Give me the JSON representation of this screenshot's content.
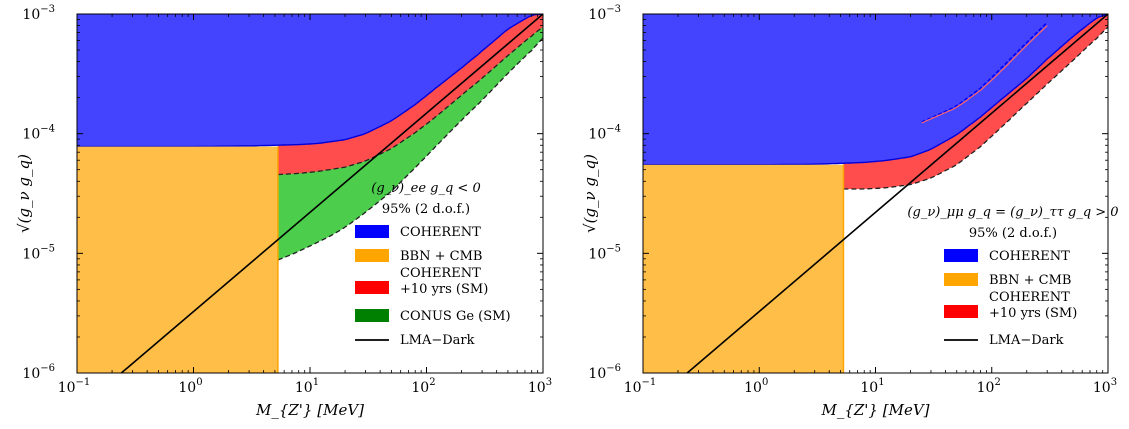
{
  "chart_data": [
    {
      "type": "area",
      "xlabel": "M_{Z'} [MeV]",
      "ylabel": "√(g_ν g_q)",
      "x_scale": "log",
      "y_scale": "log",
      "xlim": [
        0.1,
        1000
      ],
      "ylim": [
        1e-06,
        0.001
      ],
      "x_ticks": [
        {
          "value": 0.1,
          "base": "10",
          "exp": "−1"
        },
        {
          "value": 1,
          "base": "10",
          "exp": "0"
        },
        {
          "value": 10,
          "base": "10",
          "exp": "1"
        },
        {
          "value": 100,
          "base": "10",
          "exp": "2"
        },
        {
          "value": 1000,
          "base": "10",
          "exp": "3"
        }
      ],
      "y_ticks": [
        {
          "value": 1e-06,
          "base": "10",
          "exp": "−6"
        },
        {
          "value": 1e-05,
          "base": "10",
          "exp": "−5"
        },
        {
          "value": 0.0001,
          "base": "10",
          "exp": "−4"
        },
        {
          "value": 0.001,
          "base": "10",
          "exp": "−3"
        }
      ],
      "legend_title": [
        "(g_ν)_ee g_q < 0",
        "95% (2 d.o.f.)"
      ],
      "legend_placement": "lower-right",
      "legend": [
        {
          "label": [
            "COHERENT"
          ],
          "color": "#0000ff",
          "kind": "patch"
        },
        {
          "label": [
            "BBN + CMB"
          ],
          "color": "#ffa500",
          "kind": "patch"
        },
        {
          "label": [
            "COHERENT",
            "+10 yrs (SM)"
          ],
          "color": "#ff0000",
          "kind": "patch"
        },
        {
          "label": [
            "CONUS Ge (SM)"
          ],
          "color": "#008000",
          "kind": "patch"
        },
        {
          "label": [
            "LMA−Dark"
          ],
          "color": "#000000",
          "kind": "line"
        }
      ],
      "series": [
        {
          "name": "COHERENT",
          "kind": "excluded_above",
          "color": "#4444ff",
          "x": [
            0.1,
            1,
            3,
            5,
            8,
            12,
            20,
            30,
            50,
            80,
            120,
            200,
            300,
            500,
            800,
            1000
          ],
          "y": [
            7.8e-05,
            7.8e-05,
            7.9e-05,
            8e-05,
            8.1e-05,
            8.3e-05,
            8.9e-05,
            0.0001,
            0.000128,
            0.000175,
            0.00024,
            0.000355,
            0.00049,
            0.00075,
            0.00098,
            0.001
          ]
        },
        {
          "name": "BBN + CMB",
          "kind": "excluded_below_xmax",
          "color": "#ffbe47",
          "edge_color": "#ffa500",
          "xmax": 5.3,
          "ymax": 7.8e-05
        },
        {
          "name": "COHERENT +10 yrs (SM)",
          "kind": "band_above",
          "color": "#ff4d4d",
          "x_start": 5.3,
          "x": [
            5.3,
            8,
            12,
            20,
            30,
            50,
            80,
            120,
            200,
            300,
            500,
            800,
            1000
          ],
          "y": [
            4.55e-05,
            4.65e-05,
            4.85e-05,
            5.25e-05,
            5.9e-05,
            7.5e-05,
            0.000102,
            0.000138,
            0.00021,
            0.00029,
            0.00045,
            0.00066,
            0.00078
          ]
        },
        {
          "name": "CONUS Ge (SM)",
          "kind": "band_above",
          "color": "#4ccd4c",
          "x_start": 5.3,
          "x": [
            5.3,
            7,
            10,
            15,
            20,
            30,
            50,
            80,
            120,
            200,
            300,
            500,
            800,
            1000
          ],
          "y": [
            8.8e-06,
            9.8e-06,
            1.15e-05,
            1.4e-05,
            1.65e-05,
            2.2e-05,
            3.3e-05,
            5.2e-05,
            7.8e-05,
            0.00013,
            0.00019,
            0.00032,
            0.0005,
            0.00063
          ]
        },
        {
          "name": "LMA−Dark",
          "kind": "line",
          "color": "#000000",
          "x": [
            0.24,
            1000
          ],
          "y": [
            1e-06,
            0.001
          ]
        }
      ]
    },
    {
      "type": "area",
      "xlabel": "M_{Z'} [MeV]",
      "ylabel": "√(g_ν g_q)",
      "x_scale": "log",
      "y_scale": "log",
      "xlim": [
        0.1,
        1000
      ],
      "ylim": [
        1e-06,
        0.001
      ],
      "x_ticks": [
        {
          "value": 0.1,
          "base": "10",
          "exp": "−1"
        },
        {
          "value": 1,
          "base": "10",
          "exp": "0"
        },
        {
          "value": 10,
          "base": "10",
          "exp": "1"
        },
        {
          "value": 100,
          "base": "10",
          "exp": "2"
        },
        {
          "value": 1000,
          "base": "10",
          "exp": "3"
        }
      ],
      "y_ticks": [
        {
          "value": 1e-06,
          "base": "10",
          "exp": "−6"
        },
        {
          "value": 1e-05,
          "base": "10",
          "exp": "−5"
        },
        {
          "value": 0.0001,
          "base": "10",
          "exp": "−4"
        },
        {
          "value": 0.001,
          "base": "10",
          "exp": "−3"
        }
      ],
      "legend_title": [
        "(g_ν)_μμ g_q = (g_ν)_ττ g_q > 0",
        "95% (2 d.o.f.)"
      ],
      "legend_placement": "lower-right",
      "legend": [
        {
          "label": [
            "COHERENT"
          ],
          "color": "#0000ff",
          "kind": "patch"
        },
        {
          "label": [
            "BBN + CMB"
          ],
          "color": "#ffa500",
          "kind": "patch"
        },
        {
          "label": [
            "COHERENT",
            "+10 yrs (SM)"
          ],
          "color": "#ff0000",
          "kind": "patch"
        },
        {
          "label": [
            "LMA−Dark"
          ],
          "color": "#000000",
          "kind": "line"
        }
      ],
      "series": [
        {
          "name": "COHERENT",
          "kind": "excluded_above",
          "color": "#4444ff",
          "x": [
            0.1,
            1,
            3,
            5,
            8,
            12,
            20,
            30,
            50,
            80,
            120,
            200,
            300,
            500,
            800,
            1000
          ],
          "y": [
            5.5e-05,
            5.5e-05,
            5.55e-05,
            5.65e-05,
            5.75e-05,
            5.95e-05,
            6.4e-05,
            7.4e-05,
            9.8e-05,
            0.000138,
            0.000192,
            0.00029,
            0.00042,
            0.00065,
            0.00093,
            0.001
          ]
        },
        {
          "name": "BBN + CMB",
          "kind": "excluded_below_xmax",
          "color": "#ffbe47",
          "edge_color": "#ffa500",
          "xmax": 5.3,
          "ymax": 5.5e-05
        },
        {
          "name": "COHERENT +10 yrs (SM)",
          "kind": "band_above",
          "color": "#ff4d4d",
          "x_start": 5.3,
          "x": [
            5.3,
            8,
            12,
            20,
            30,
            50,
            80,
            120,
            200,
            300,
            500,
            800,
            1000
          ],
          "y": [
            3.45e-05,
            3.45e-05,
            3.52e-05,
            3.75e-05,
            4.25e-05,
            5.5e-05,
            7.8e-05,
            0.000112,
            0.00018,
            0.00026,
            0.00041,
            0.00063,
            0.00078
          ]
        },
        {
          "name": "COHERENT (island)",
          "kind": "curve_pair",
          "color": "#0000ff",
          "x": [
            25,
            35,
            50,
            80,
            120,
            200,
            300
          ],
          "y_upper": [
            0.000125,
            0.000145,
            0.00017,
            0.00024,
            0.00035,
            0.00058,
            0.00085
          ],
          "y_lower": [
            0.000123,
            0.000142,
            0.000165,
            0.00023,
            0.00033,
            0.00055,
            0.0008
          ]
        },
        {
          "name": "LMA−Dark",
          "kind": "line",
          "color": "#000000",
          "x": [
            0.24,
            1000
          ],
          "y": [
            1e-06,
            0.001
          ]
        }
      ]
    }
  ]
}
